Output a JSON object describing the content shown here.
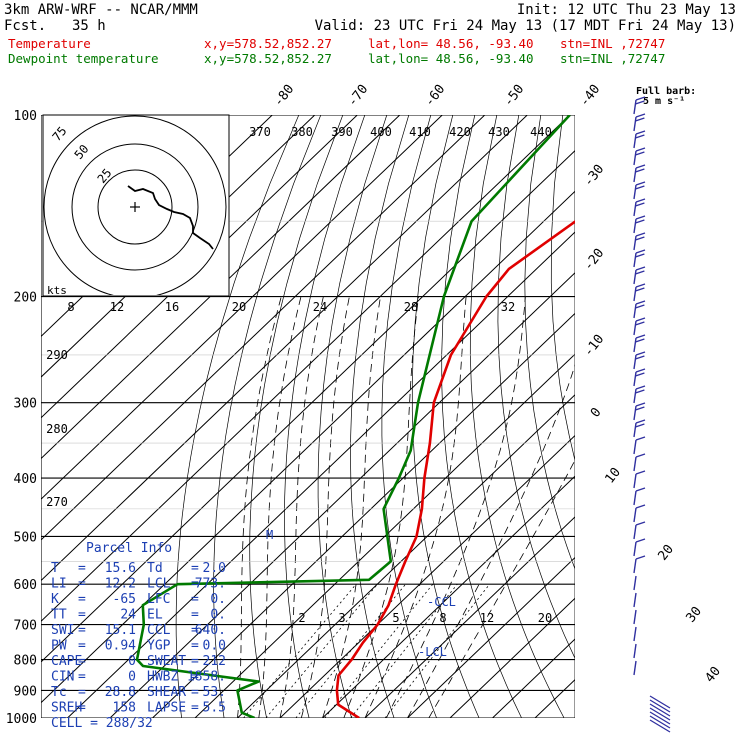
{
  "header": {
    "model": "3km ARW-WRF -- NCAR/MMM",
    "init": "Init: 12 UTC Thu 23 May 13",
    "fcst_label": "Fcst.",
    "fcst_value": "35 h",
    "valid": "Valid: 23 UTC Fri 24 May 13 (17 MDT Fri 24 May 13)",
    "rows": [
      {
        "name": "Temperature",
        "xy": "x,y=578.52,852.27",
        "latlon": "lat,lon= 48.56, -93.40",
        "stn": "stn=INL ,72747"
      },
      {
        "name": "Dewpoint temperature",
        "xy": "x,y=578.52,852.27",
        "latlon": "lat,lon= 48.56, -93.40",
        "stn": "stn=INL ,72747"
      }
    ]
  },
  "colors": {
    "temperature": "#e00000",
    "dewpoint": "#007a00",
    "barbs": "#3030a0",
    "hodograph": "#000000"
  },
  "full_barb_label": "Full barb:",
  "full_barb_value": "5 m s⁻¹",
  "hodo_units": "kts",
  "parcel_title": "Parcel Info",
  "parcel": [
    {
      "l": "T",
      "lv": "15.6",
      "r": "Td",
      "rv": "2.0"
    },
    {
      "l": "LI",
      "lv": "12.2",
      "r": "LCL",
      "rv": "773."
    },
    {
      "l": "K",
      "lv": "-65",
      "r": "LFC",
      "rv": "0."
    },
    {
      "l": "TT",
      "lv": "24",
      "r": "EL",
      "rv": "0."
    },
    {
      "l": "SWI",
      "lv": "15.1",
      "r": "CCL",
      "rv": "640."
    },
    {
      "l": "PW",
      "lv": "0.94",
      "r": "YGP",
      "rv": "0.0"
    },
    {
      "l": "CAPE",
      "lv": "0",
      "r": "SWEAT",
      "rv": "212"
    },
    {
      "l": "CIN",
      "lv": "0",
      "r": "HWBZ",
      "rv": "1858."
    },
    {
      "l": "Tc",
      "lv": "28.8",
      "r": "SHEAR",
      "rv": "53."
    },
    {
      "l": "SREH",
      "lv": "158",
      "r": "LAPSE",
      "rv": "5.5"
    }
  ],
  "cell": "CELL = 288/32",
  "annotations": {
    "ccl": "-CCL",
    "lcl": "-LCL",
    "m": "M"
  },
  "chart_data": {
    "type": "line",
    "pressure_levels": [
      100,
      200,
      300,
      400,
      500,
      600,
      700,
      800,
      900,
      1000
    ],
    "isotherm_labels": [
      "-80",
      "-70",
      "-60",
      "-50",
      "-40",
      "-30",
      "-20",
      "-10",
      "0",
      "10",
      "20",
      "30",
      "40"
    ],
    "theta_labels": [
      "370",
      "380",
      "390",
      "400",
      "410",
      "420",
      "430",
      "440"
    ],
    "theta_left_labels": [
      "290",
      "280",
      "270"
    ],
    "hodo_speed_labels": [
      "8",
      "12",
      "16",
      "20",
      "24",
      "28",
      "32"
    ],
    "hodo_ring_labels": [
      "75",
      "50",
      "25"
    ],
    "mixing_ratio_labels": [
      "2",
      "3",
      "5",
      "8",
      "12",
      "20"
    ],
    "series": [
      {
        "name": "Temperature",
        "points": [
          [
            1000,
            18.6
          ],
          [
            950,
            10.4
          ],
          [
            900,
            6.6
          ],
          [
            850,
            3.3
          ],
          [
            800,
            2.5
          ],
          [
            750,
            1.0
          ],
          [
            700,
            0.0
          ],
          [
            650,
            -2.2
          ],
          [
            600,
            -5.6
          ],
          [
            550,
            -9.0
          ],
          [
            500,
            -12.5
          ],
          [
            450,
            -18.0
          ],
          [
            400,
            -25.0
          ],
          [
            350,
            -32.3
          ],
          [
            300,
            -41.3
          ],
          [
            250,
            -49.0
          ],
          [
            200,
            -55.0
          ],
          [
            180,
            -56.5
          ],
          [
            150,
            -52.5
          ],
          [
            120,
            -55.0
          ],
          [
            100,
            -60.0
          ]
        ]
      },
      {
        "name": "Dewpoint temperature",
        "points": [
          [
            1000,
            -6.0
          ],
          [
            980,
            -10.3
          ],
          [
            900,
            -16.8
          ],
          [
            870,
            -14.0
          ],
          [
            820,
            -45.0
          ],
          [
            800,
            -48.0
          ],
          [
            700,
            -55.0
          ],
          [
            650,
            -60.0
          ],
          [
            600,
            -57.0
          ],
          [
            590,
            -13.0
          ],
          [
            550,
            -12.4
          ],
          [
            450,
            -27.0
          ],
          [
            400,
            -31.0
          ],
          [
            360,
            -35.0
          ],
          [
            300,
            -45.0
          ],
          [
            200,
            -65.0
          ],
          [
            150,
            -77.0
          ],
          [
            100,
            -80.0
          ]
        ]
      }
    ]
  }
}
